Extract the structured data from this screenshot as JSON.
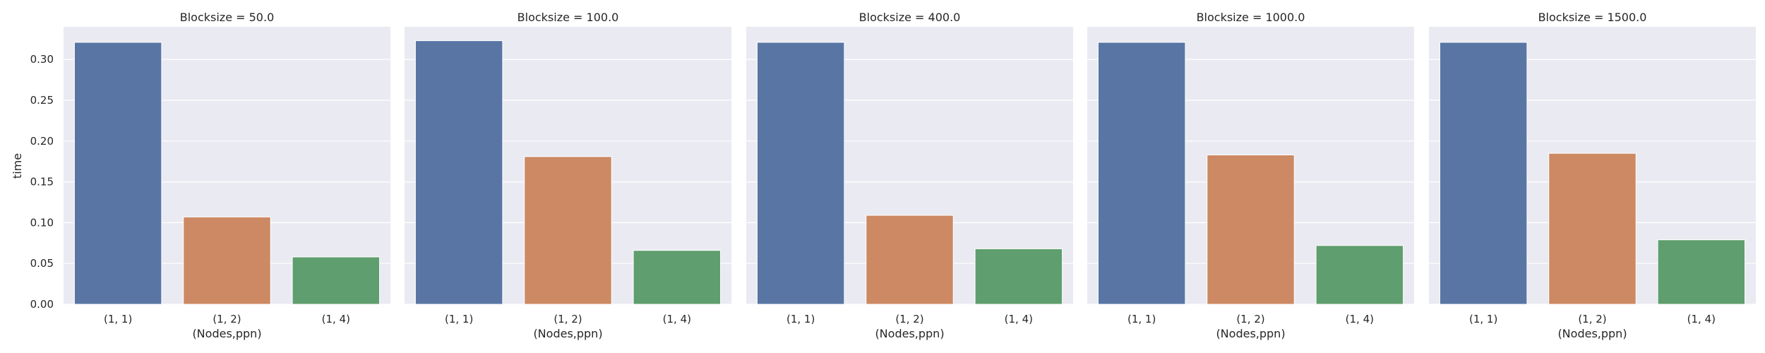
{
  "chart_data": {
    "type": "bar",
    "ylabel": "time",
    "xlabel": "(Nodes,ppn)",
    "ylim": [
      0,
      0.34
    ],
    "yticks": [
      "0.00",
      "0.05",
      "0.10",
      "0.15",
      "0.20",
      "0.25",
      "0.30"
    ],
    "categories": [
      "(1, 1)",
      "(1, 2)",
      "(1, 4)"
    ],
    "grid": true,
    "colors": {
      "background": "#eaeaf2",
      "grid": "#ffffff",
      "bars": [
        "#5875a4",
        "#cc8963",
        "#5f9e6e"
      ]
    },
    "panels": [
      {
        "title": "Blocksize = 50.0",
        "values": [
          0.321,
          0.107,
          0.058
        ]
      },
      {
        "title": "Blocksize = 100.0",
        "values": [
          0.323,
          0.181,
          0.066
        ]
      },
      {
        "title": "Blocksize = 400.0",
        "values": [
          0.321,
          0.109,
          0.068
        ]
      },
      {
        "title": "Blocksize = 1000.0",
        "values": [
          0.321,
          0.183,
          0.072
        ]
      },
      {
        "title": "Blocksize = 1500.0",
        "values": [
          0.321,
          0.185,
          0.079
        ]
      }
    ]
  }
}
